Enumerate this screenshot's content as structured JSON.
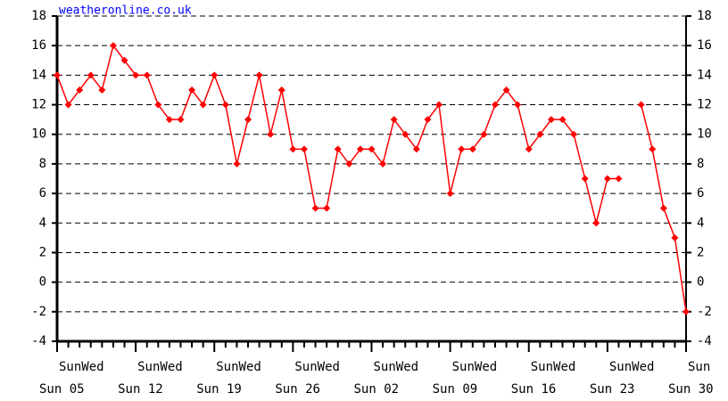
{
  "chart_data": {
    "type": "line",
    "title": "weatheronline.co.uk",
    "x_labels_top": [
      "SunWed",
      "SunWed",
      "SunWed",
      "SunWed",
      "SunWed",
      "SunWed",
      "SunWed",
      "SunWed",
      "Sun"
    ],
    "x_labels_bottom": [
      "Sun 05",
      "Sun 12",
      "Sun 19",
      "Sun 26",
      "Sun 02",
      "Sun 09",
      "Sun 16",
      "Sun 23",
      "Sun 30"
    ],
    "series": [
      {
        "color": "#ff0000",
        "values": [
          14,
          12,
          13,
          14,
          13,
          16,
          15,
          14,
          14,
          12,
          11,
          11,
          13,
          12,
          14,
          12,
          8,
          11,
          14,
          10,
          13,
          9,
          9,
          5,
          5,
          9,
          8,
          9,
          9,
          8,
          11,
          10,
          9,
          11,
          12,
          6,
          9,
          9,
          10,
          12,
          13,
          12,
          9,
          10,
          11,
          11,
          10,
          7,
          4,
          7,
          7,
          null,
          12,
          9,
          5,
          3,
          -2
        ]
      }
    ],
    "ylim": [
      -4,
      18
    ],
    "yticks": [
      -4,
      -2,
      0,
      2,
      4,
      6,
      8,
      10,
      12,
      14,
      16,
      18
    ],
    "grid": true
  }
}
